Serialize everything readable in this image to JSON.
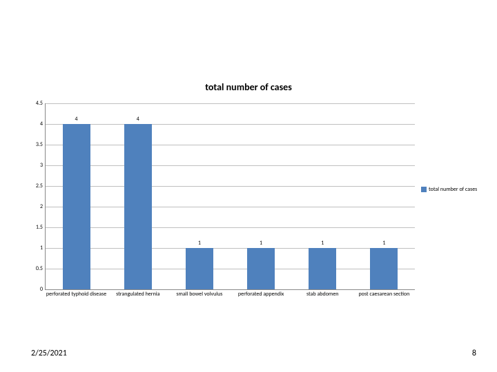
{
  "chart": {
    "type": "bar",
    "title": "total number of cases",
    "title_fontsize": 14,
    "title_weight": "bold",
    "categories": [
      "perforated typhoid disease",
      "strangulated hernia",
      "small bowel volvulus",
      "perforated appendix",
      "stab abdomen",
      "post caesarean section"
    ],
    "values": [
      4,
      4,
      1,
      1,
      1,
      1
    ],
    "value_labels": [
      "4",
      "4",
      "1",
      "1",
      "1",
      "1"
    ],
    "bar_color": "#4f81bd",
    "ylim": [
      0,
      4.5
    ],
    "ytick_step": 0.5,
    "yticks": [
      "0",
      "0.5",
      "1",
      "1.5",
      "2",
      "2.5",
      "3",
      "3.5",
      "4",
      "4.5"
    ],
    "grid_color": "#bfbfbf",
    "axis_color": "#888888",
    "background_color": "#ffffff",
    "tick_fontsize": 8,
    "legend": {
      "label": "total number of cases",
      "swatch_color": "#4f81bd"
    }
  },
  "footer": {
    "date": "2/25/2021",
    "page": "8"
  }
}
